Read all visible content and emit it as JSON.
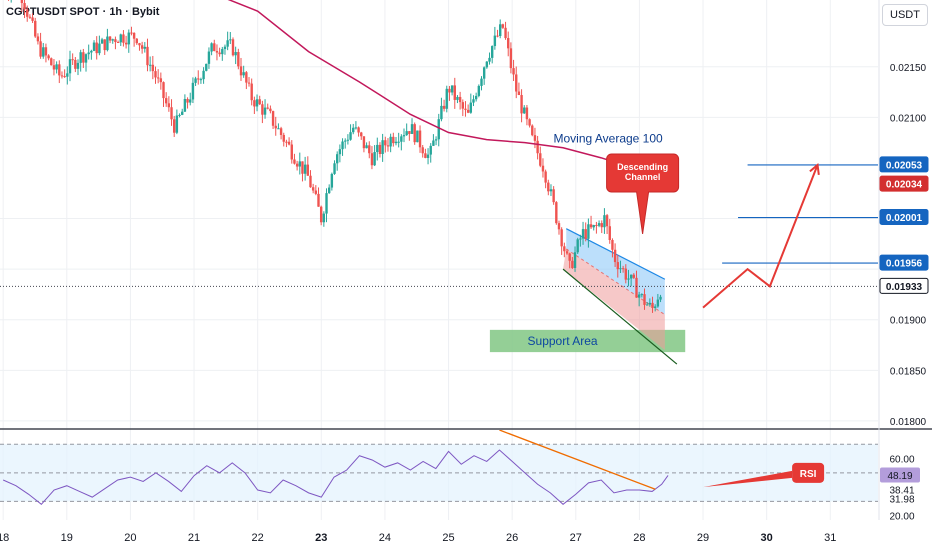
{
  "header": {
    "symbol": "CGPTUSDT SPOT",
    "interval": "1h",
    "exchange": "Bybit"
  },
  "currency_label": "USDT",
  "chart_data": [
    {
      "type": "candlestick",
      "title": "",
      "y_axis": {
        "ticks": [
          "0.02150",
          "0.02100",
          "0.01900",
          "0.01850",
          "0.01800"
        ],
        "tick_values": [
          0.0215,
          0.021,
          0.019,
          0.0185,
          0.018
        ],
        "ylim": [
          0.01793,
          0.02216
        ]
      },
      "x_axis": {
        "ticks": [
          "18",
          "19",
          "20",
          "21",
          "22",
          "23",
          "24",
          "25",
          "26",
          "27",
          "28",
          "29",
          "30",
          "31"
        ],
        "bold_ticks": [
          "23",
          "30"
        ],
        "xlim": [
          17.95,
          31.75
        ]
      },
      "price_badges": [
        {
          "label": "0.02053",
          "value": 0.02053,
          "style": "blue"
        },
        {
          "label": "0.02034",
          "value": 0.02034,
          "style": "red"
        },
        {
          "label": "0.02001",
          "value": 0.02001,
          "style": "blue"
        },
        {
          "label": "0.01956",
          "value": 0.01956,
          "style": "blue"
        },
        {
          "label": "0.01933",
          "value": 0.01933,
          "style": "dark"
        }
      ],
      "current_price": 0.01933,
      "levels": [
        {
          "value": 0.02053,
          "from": 29.7,
          "to": 31.6
        },
        {
          "value": 0.02001,
          "from": 29.55,
          "to": 31.6
        },
        {
          "value": 0.01956,
          "from": 29.3,
          "to": 31.6
        }
      ],
      "moving_average": {
        "label": "Moving Average 100",
        "color": "#c2185b",
        "points": [
          [
            20.9,
            0.02225
          ],
          [
            21.4,
            0.0222
          ],
          [
            22.0,
            0.02205
          ],
          [
            22.8,
            0.02165
          ],
          [
            23.6,
            0.02135
          ],
          [
            24.4,
            0.02103
          ],
          [
            25.0,
            0.02085
          ],
          [
            25.6,
            0.02078
          ],
          [
            26.2,
            0.02075
          ],
          [
            26.8,
            0.0207
          ],
          [
            27.4,
            0.0206
          ],
          [
            27.9,
            0.0205
          ],
          [
            28.3,
            0.0203
          ]
        ]
      },
      "candles_summary": {
        "up_color": "#26a69a",
        "down_color": "#ef5350",
        "path": [
          [
            18.0,
            0.0223
          ],
          [
            18.3,
            0.0222
          ],
          [
            18.55,
            0.0217
          ],
          [
            18.9,
            0.0214
          ],
          [
            19.2,
            0.0216
          ],
          [
            19.5,
            0.0217
          ],
          [
            19.8,
            0.0218
          ],
          [
            20.1,
            0.0218
          ],
          [
            20.4,
            0.0214
          ],
          [
            20.7,
            0.0209
          ],
          [
            21.0,
            0.0213
          ],
          [
            21.3,
            0.0217
          ],
          [
            21.6,
            0.0217
          ],
          [
            21.9,
            0.0212
          ],
          [
            22.2,
            0.021
          ],
          [
            22.5,
            0.0207
          ],
          [
            22.8,
            0.0204
          ],
          [
            23.0,
            0.02
          ],
          [
            23.2,
            0.0206
          ],
          [
            23.5,
            0.0209
          ],
          [
            23.8,
            0.0206
          ],
          [
            24.1,
            0.0208
          ],
          [
            24.4,
            0.0209
          ],
          [
            24.7,
            0.0206
          ],
          [
            25.0,
            0.0213
          ],
          [
            25.3,
            0.021
          ],
          [
            25.6,
            0.0216
          ],
          [
            25.85,
            0.0219
          ],
          [
            26.05,
            0.0213
          ],
          [
            26.3,
            0.0208
          ],
          [
            26.5,
            0.0205
          ],
          [
            26.7,
            0.02
          ],
          [
            26.9,
            0.0195
          ],
          [
            27.1,
            0.01985
          ],
          [
            27.3,
            0.0199
          ],
          [
            27.45,
            0.02
          ],
          [
            27.6,
            0.01962
          ],
          [
            27.75,
            0.01948
          ],
          [
            27.9,
            0.01935
          ],
          [
            28.05,
            0.0192
          ],
          [
            28.2,
            0.0191
          ],
          [
            28.35,
            0.01933
          ]
        ]
      },
      "descending_channel": {
        "label": "Descending Channel",
        "upper": [
          [
            26.85,
            0.0199
          ],
          [
            28.4,
            0.0194
          ]
        ],
        "lower": [
          [
            26.8,
            0.0195
          ],
          [
            28.4,
            0.0187
          ]
        ]
      },
      "support_area": {
        "label": "Support Area",
        "y_range": [
          0.01868,
          0.0189
        ],
        "x_range": [
          25.65,
          28.72
        ]
      },
      "forecast_path": {
        "color": "#e53935",
        "points": [
          [
            29.0,
            0.01912
          ],
          [
            29.7,
            0.0195
          ],
          [
            30.05,
            0.01933
          ],
          [
            30.8,
            0.02053
          ]
        ]
      }
    },
    {
      "type": "line",
      "title": "RSI",
      "y_axis": {
        "ticks": [
          "60.00",
          "38.41",
          "31.98",
          "20.00"
        ],
        "tick_values": [
          60,
          38.41,
          31.98,
          20
        ],
        "ylim": [
          17,
          80
        ]
      },
      "badges": [
        {
          "label": "48.19",
          "value": 48.19
        }
      ],
      "guides": [
        70,
        50,
        30
      ],
      "trendline": {
        "points": [
          [
            25.8,
            80
          ],
          [
            28.25,
            38.5
          ]
        ]
      },
      "series": [
        {
          "values": [
            [
              18.0,
              45
            ],
            [
              18.2,
              41
            ],
            [
              18.4,
              35
            ],
            [
              18.6,
              28
            ],
            [
              18.8,
              38
            ],
            [
              19.0,
              41
            ],
            [
              19.2,
              37
            ],
            [
              19.4,
              33
            ],
            [
              19.6,
              39
            ],
            [
              19.8,
              45
            ],
            [
              20.0,
              47
            ],
            [
              20.2,
              44
            ],
            [
              20.4,
              50
            ],
            [
              20.6,
              44
            ],
            [
              20.8,
              37
            ],
            [
              21.0,
              48
            ],
            [
              21.2,
              55
            ],
            [
              21.4,
              50
            ],
            [
              21.6,
              57
            ],
            [
              21.8,
              50
            ],
            [
              22.0,
              38
            ],
            [
              22.2,
              36
            ],
            [
              22.4,
              45
            ],
            [
              22.6,
              41
            ],
            [
              22.8,
              36
            ],
            [
              23.0,
              33
            ],
            [
              23.2,
              47
            ],
            [
              23.4,
              52
            ],
            [
              23.6,
              62
            ],
            [
              23.8,
              59
            ],
            [
              24.0,
              54
            ],
            [
              24.2,
              57
            ],
            [
              24.4,
              52
            ],
            [
              24.6,
              58
            ],
            [
              24.8,
              53
            ],
            [
              25.0,
              65
            ],
            [
              25.2,
              56
            ],
            [
              25.4,
              62
            ],
            [
              25.6,
              58
            ],
            [
              25.8,
              66
            ],
            [
              26.0,
              58
            ],
            [
              26.2,
              50
            ],
            [
              26.4,
              42
            ],
            [
              26.6,
              36
            ],
            [
              26.8,
              28
            ],
            [
              27.0,
              35
            ],
            [
              27.2,
              43
            ],
            [
              27.4,
              45
            ],
            [
              27.6,
              36
            ],
            [
              27.8,
              38
            ],
            [
              28.0,
              38
            ],
            [
              28.2,
              37
            ],
            [
              28.35,
              42
            ],
            [
              28.45,
              48.19
            ]
          ]
        }
      ],
      "arrow": {
        "points": [
          [
            29.0,
            40
          ],
          [
            30.4,
            50
          ]
        ]
      }
    }
  ]
}
